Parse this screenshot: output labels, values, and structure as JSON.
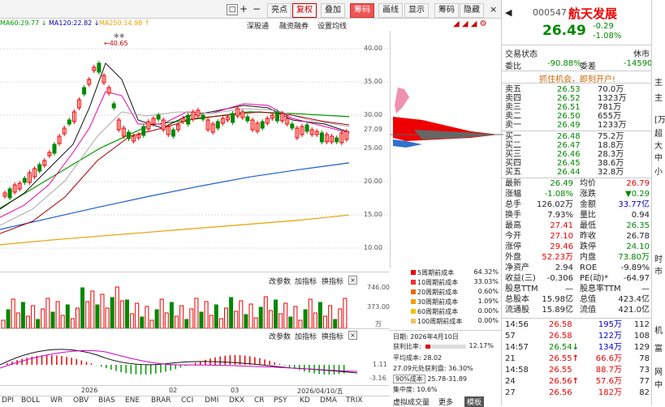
{
  "toolbar": {
    "left_icons": [
      "□",
      "+",
      "−"
    ],
    "buttons": [
      "亮点",
      "复权",
      "叠加",
      "筹码",
      "画线",
      "显示",
      "筹码",
      "隐藏"
    ],
    "close": "×"
  },
  "ma_legend": {
    "ma60": "MA60:29.77",
    "ma120": "MA120:22.82",
    "ma250": "MA250:14.98",
    "arrow60": "↓",
    "arrow120": "↓",
    "arrow250": "↑"
  },
  "chart_tabs": [
    "深股通",
    "融资融券",
    "设置均线"
  ],
  "price_axis": [
    "40.00",
    "35.00",
    "30.00",
    "27.09",
    "25.00",
    "20.00",
    "15.00",
    "10.00"
  ],
  "price_marker": "←40.65",
  "stars": "✱✱",
  "chart_data": {
    "type": "line",
    "title": "",
    "xlabel": "",
    "ylabel": "",
    "x_ticks": [
      "2026",
      "02",
      "03"
    ],
    "ylim": [
      10,
      40
    ],
    "series": [
      {
        "name": "MA250:14.98",
        "values": [
          10.5,
          11.2,
          11.8,
          12.4,
          13.0,
          13.6,
          14.2,
          14.98
        ]
      },
      {
        "name": "MA120:22.82",
        "values": [
          12.8,
          14.5,
          16.2,
          17.8,
          19.3,
          20.7,
          21.8,
          22.82
        ]
      },
      {
        "name": "MA60:29.77",
        "values": [
          16.0,
          20.5,
          25.0,
          28.5,
          29.5,
          30.5,
          30.2,
          29.77
        ]
      }
    ]
  },
  "volume_panel": {
    "buttons": [
      "改参数",
      "加指标",
      "换指标"
    ],
    "axis": [
      "746.00",
      "373.00",
      "万"
    ]
  },
  "macd_panel": {
    "buttons": [
      "改参数",
      "加指标",
      "换指标"
    ],
    "axis": [
      "1.11",
      "-3.16"
    ]
  },
  "date_axis": [
    "2026",
    "02",
    "03",
    "2026/04/10/五"
  ],
  "bottom_tabs": [
    "DPI",
    "BOLL",
    "WR",
    "OBV",
    "BIAS",
    "ENE",
    "BRAR",
    "CCI",
    "DMI",
    "DKX",
    "CR",
    "PSY",
    "KD",
    "DMA",
    "TRIX"
  ],
  "chip_legend": [
    {
      "label": "5周期前成本",
      "pct": "64.32%",
      "color": "#e00"
    },
    {
      "label": "10周期前成本",
      "pct": "33.03%",
      "color": "#e33"
    },
    {
      "label": "20周期前成本",
      "pct": "0.60%",
      "color": "#ee6600"
    },
    {
      "label": "30周期前成本",
      "pct": "1.09%",
      "color": "#f3a000"
    },
    {
      "label": "60周期前成本",
      "pct": "0.00%",
      "color": "#f0c000"
    },
    {
      "label": "100周期前成本",
      "pct": "0.00%",
      "color": "#eec060"
    }
  ],
  "chip_info": {
    "date": "日期: 2026年4月10日",
    "profit_label": "获利比率:",
    "profit_val": "12.17%",
    "avg_cost": "平均成本: 28.02",
    "profit_line": "27.09元处获利盘: 36.30%",
    "cost90": "90%成本",
    "cost90_range": "25.78-31.89",
    "concentration": "集中度: 10.6%",
    "tabs": [
      "虚拟成交量",
      "更多",
      "模板"
    ]
  },
  "stock": {
    "code": "000547",
    "name": "航天发展",
    "price": "26.49",
    "change": "-0.29",
    "change_pct": "-1.08%",
    "status": "交易状态",
    "status_val": "休市",
    "webi": "委比",
    "webi_val": "-90.88%",
    "weicha": "委差",
    "weicha_val": "-14590",
    "ad": "抓住机会，即刻开户!"
  },
  "asks": [
    {
      "label": "卖五",
      "price": "26.53",
      "vol": "70.0万"
    },
    {
      "label": "卖四",
      "price": "26.52",
      "vol": "1323万"
    },
    {
      "label": "卖三",
      "price": "26.51",
      "vol": "781万"
    },
    {
      "label": "卖二",
      "price": "26.50",
      "vol": "655万"
    },
    {
      "label": "卖一",
      "price": "26.49",
      "vol": "1233万"
    }
  ],
  "bids": [
    {
      "label": "买一",
      "price": "26.48",
      "vol": "75.2万"
    },
    {
      "label": "买二",
      "price": "26.47",
      "vol": "18.8万"
    },
    {
      "label": "买三",
      "price": "26.46",
      "vol": "28.3万"
    },
    {
      "label": "买四",
      "price": "26.45",
      "vol": "38.6万"
    },
    {
      "label": "买五",
      "price": "26.44",
      "vol": "32.8万"
    }
  ],
  "stats": [
    {
      "l1": "最新",
      "v1": "26.49",
      "c1": "grn",
      "l2": "均价",
      "v2": "26.79",
      "c2": "red"
    },
    {
      "l1": "涨幅",
      "v1": "-1.08%",
      "c1": "grn",
      "l2": "涨跌",
      "v2": "▼0.29",
      "c2": "grn"
    },
    {
      "l1": "总手",
      "v1": "126.02万",
      "c1": "",
      "l2": "金额",
      "v2": "33.77亿",
      "c2": "blu"
    },
    {
      "l1": "换手",
      "v1": "7.93%",
      "c1": "",
      "l2": "量比",
      "v2": "0.94",
      "c2": ""
    },
    {
      "l1": "最高",
      "v1": "27.41",
      "c1": "red",
      "l2": "最低",
      "v2": "26.35",
      "c2": "grn"
    },
    {
      "l1": "今开",
      "v1": "27.10",
      "c1": "red",
      "l2": "昨收",
      "v2": "26.78",
      "c2": ""
    },
    {
      "l1": "涨停",
      "v1": "29.46",
      "c1": "red",
      "l2": "跌停",
      "v2": "24.10",
      "c2": "grn"
    },
    {
      "l1": "外盘",
      "v1": "52.23万",
      "c1": "red",
      "l2": "内盘",
      "v2": "73.80万",
      "c2": "grn"
    },
    {
      "l1": "净资产",
      "v1": "2.94",
      "c1": "",
      "l2": "ROE",
      "v2": "-9.89%",
      "c2": ""
    },
    {
      "l1": "收益(三)",
      "v1": "-0.306",
      "c1": "",
      "l2": "PE(动)*",
      "v2": "-64.97",
      "c2": ""
    },
    {
      "l1": "股息TTM",
      "v1": "—",
      "c1": "",
      "l2": "股息率TTM",
      "v2": "—",
      "c2": ""
    },
    {
      "l1": "总股本",
      "v1": "15.98亿",
      "c1": "",
      "l2": "总值",
      "v2": "423.4亿",
      "c2": ""
    },
    {
      "l1": "流通股",
      "v1": "15.89亿",
      "c1": "",
      "l2": "流值",
      "v2": "421.0亿",
      "c2": ""
    }
  ],
  "ticks": [
    {
      "t": "14:56",
      "p": "26.58",
      "pc": "red",
      "v": "195万",
      "vc": "blu",
      "n": "112",
      "a": ""
    },
    {
      "t": "57",
      "p": "26.58",
      "pc": "red",
      "v": "122万",
      "vc": "blu",
      "n": "108",
      "a": ""
    },
    {
      "t": "14:57",
      "p": "26.54",
      "pc": "grn",
      "v": "134万",
      "vc": "blu",
      "n": "129",
      "a": "↓"
    },
    {
      "t": "21",
      "p": "26.55",
      "pc": "red",
      "v": "66.6万",
      "vc": "red",
      "n": "78",
      "a": "↑"
    },
    {
      "t": "14:58",
      "p": "26.55",
      "pc": "red",
      "v": "88.7万",
      "vc": "red",
      "n": "73",
      "a": ""
    },
    {
      "t": "24",
      "p": "26.56",
      "pc": "red",
      "v": "57.6万",
      "vc": "red",
      "n": "77",
      "a": "↑"
    },
    {
      "t": "27",
      "p": "26.56",
      "pc": "red",
      "v": "182万",
      "vc": "red",
      "n": "82",
      "a": ""
    }
  ],
  "right_edge": [
    "主",
    "主",
    "[万",
    "超",
    "大",
    "中",
    "小",
    "时",
    "市",
    "机",
    "富",
    "网",
    "中"
  ]
}
